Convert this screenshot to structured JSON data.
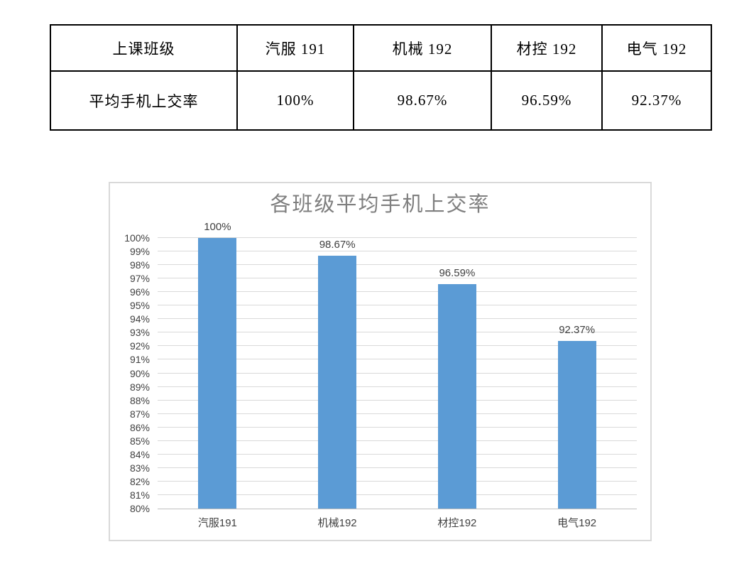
{
  "page": {
    "background": "#ffffff"
  },
  "table": {
    "rows": [
      {
        "cells": [
          "上课班级",
          "汽服 191",
          "机械 192",
          "材控 192",
          "电气 192"
        ]
      },
      {
        "cells": [
          "平均手机上交率",
          "100%",
          "98.67%",
          "96.59%",
          "92.37%"
        ]
      }
    ]
  },
  "chart_data": {
    "type": "bar",
    "title": "各班级平均手机上交率",
    "categories": [
      "汽服191",
      "机械192",
      "材控192",
      "电气192"
    ],
    "values": [
      100,
      98.67,
      96.59,
      92.37
    ],
    "data_labels": [
      "100%",
      "98.67%",
      "96.59%",
      "92.37%"
    ],
    "xlabel": "",
    "ylabel": "",
    "ylim": [
      80,
      100
    ],
    "ytick_step": 1,
    "ytick_suffix": "%",
    "grid": true,
    "legend": "none",
    "colors": {
      "bar": "#5B9BD5",
      "gridline": "#D9D9D9",
      "axis_line": "#BFBFBF",
      "chart_border": "#D9D9D9",
      "title": "#7F7F7F",
      "tick_label": "#404040",
      "data_label": "#404040",
      "category_label": "#404040"
    }
  }
}
